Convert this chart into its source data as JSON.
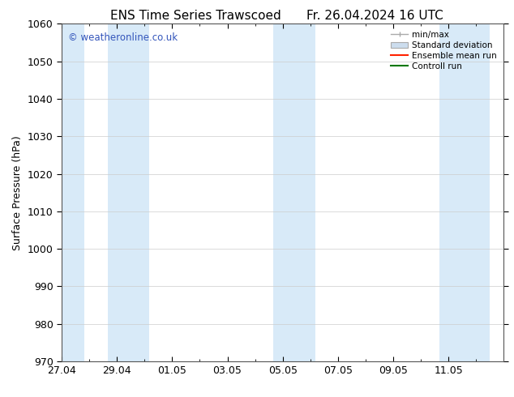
{
  "title_left": "ENS Time Series Trawscoed",
  "title_right": "Fr. 26.04.2024 16 UTC",
  "ylabel": "Surface Pressure (hPa)",
  "ylim": [
    970,
    1060
  ],
  "yticks": [
    970,
    980,
    990,
    1000,
    1010,
    1020,
    1030,
    1040,
    1050,
    1060
  ],
  "xtick_labels": [
    "27.04",
    "29.04",
    "01.05",
    "03.05",
    "05.05",
    "07.05",
    "09.05",
    "11.05"
  ],
  "xtick_positions": [
    0,
    2,
    4,
    6,
    8,
    10,
    12,
    14
  ],
  "xlim": [
    0,
    16
  ],
  "shaded_intervals": [
    [
      0.0,
      0.83
    ],
    [
      1.67,
      3.17
    ],
    [
      7.67,
      9.17
    ],
    [
      13.67,
      15.5
    ]
  ],
  "shade_color": "#d8eaf8",
  "watermark": "© weatheronline.co.uk",
  "watermark_color": "#3355bb",
  "bg_color": "#ffffff",
  "legend_labels": [
    "min/max",
    "Standard deviation",
    "Ensemble mean run",
    "Controll run"
  ],
  "minmax_color": "#aaaaaa",
  "stddev_color": "#ccddee",
  "ensemble_color": "#ff2200",
  "control_color": "#007700",
  "title_fontsize": 11,
  "label_fontsize": 9,
  "tick_fontsize": 9
}
